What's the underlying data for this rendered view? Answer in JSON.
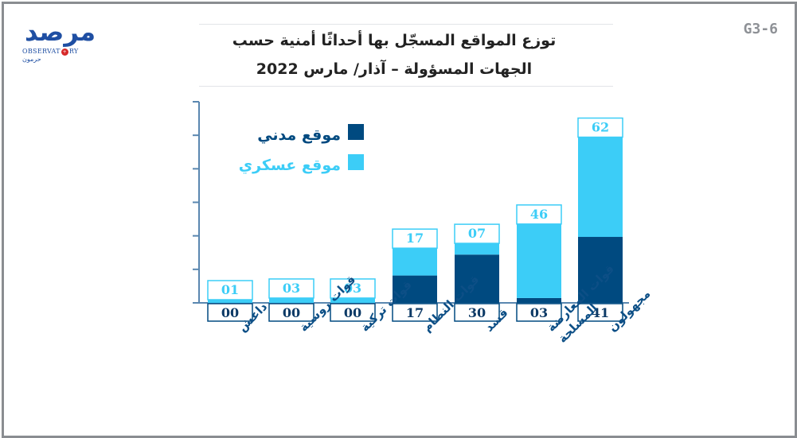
{
  "figure_code": "G3-6",
  "logo": {
    "main_text": "مرصد",
    "sub_text_left": "OBSERVAT",
    "sub_text_right": "RY",
    "sub_text_ar": "حرمون",
    "badge": "+"
  },
  "colors": {
    "civilian": "#004a80",
    "military": "#3ccdf7",
    "axis": "#5a87b0",
    "label": "#0d4f86"
  },
  "chart_data": {
    "type": "bar",
    "stacked": true,
    "title": "توزع المواقع المسجّل بها أحداثًا أمنية حسب",
    "subtitle": "الجهات المسؤولة – آذار/ مارس 2022",
    "categories": [
      "داعش",
      "قوات روسية",
      "قوات تركية",
      "قوات النظام",
      "قسد",
      "قوات المعارضة المسلحة",
      "مجهولون"
    ],
    "category_lines": [
      [
        "داعش"
      ],
      [
        "قوات روسية"
      ],
      [
        "قوات تركية"
      ],
      [
        "قوات النظام"
      ],
      [
        "قسد"
      ],
      [
        "قوات المعارضة",
        "المسلحة"
      ],
      [
        "مجهولون"
      ]
    ],
    "series": [
      {
        "name": "موقع مدني",
        "values": [
          0,
          0,
          0,
          17,
          30,
          3,
          41
        ],
        "labels": [
          "00",
          "00",
          "00",
          "17",
          "30",
          "03",
          "41"
        ]
      },
      {
        "name": "موقع عسكري",
        "values": [
          1,
          3,
          3,
          17,
          7,
          46,
          62
        ],
        "labels": [
          "01",
          "03",
          "03",
          "17",
          "07",
          "46",
          "62"
        ]
      }
    ],
    "ylim": [
      0,
      125
    ],
    "grid": false,
    "legend_position": "top-left"
  }
}
